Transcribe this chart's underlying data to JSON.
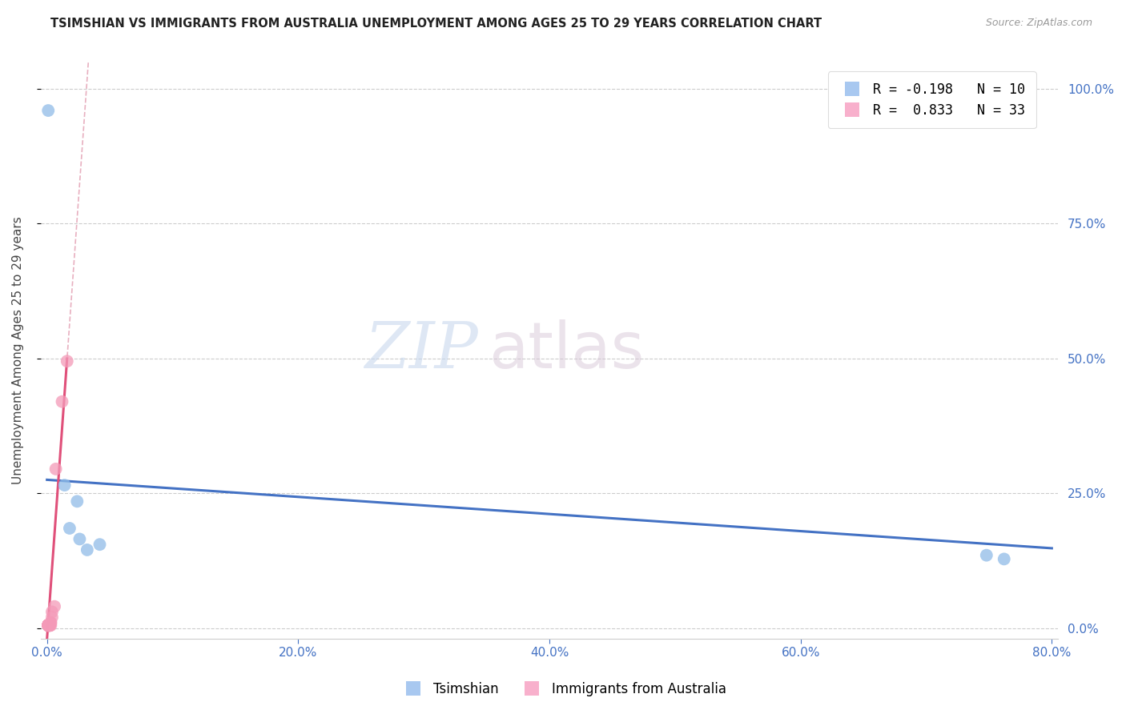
{
  "title": "TSIMSHIAN VS IMMIGRANTS FROM AUSTRALIA UNEMPLOYMENT AMONG AGES 25 TO 29 YEARS CORRELATION CHART",
  "source": "Source: ZipAtlas.com",
  "ylabel": "Unemployment Among Ages 25 to 29 years",
  "tsimshian_points": [
    [
      0.001,
      0.96
    ],
    [
      0.014,
      0.265
    ],
    [
      0.024,
      0.235
    ],
    [
      0.018,
      0.185
    ],
    [
      0.026,
      0.165
    ],
    [
      0.032,
      0.145
    ],
    [
      0.042,
      0.155
    ],
    [
      0.748,
      0.135
    ],
    [
      0.762,
      0.128
    ]
  ],
  "australia_points": [
    [
      0.001,
      0.005
    ],
    [
      0.001,
      0.005
    ],
    [
      0.001,
      0.005
    ],
    [
      0.001,
      0.005
    ],
    [
      0.001,
      0.005
    ],
    [
      0.001,
      0.005
    ],
    [
      0.001,
      0.005
    ],
    [
      0.001,
      0.005
    ],
    [
      0.001,
      0.005
    ],
    [
      0.001,
      0.005
    ],
    [
      0.001,
      0.005
    ],
    [
      0.001,
      0.005
    ],
    [
      0.001,
      0.005
    ],
    [
      0.001,
      0.005
    ],
    [
      0.001,
      0.005
    ],
    [
      0.001,
      0.005
    ],
    [
      0.002,
      0.005
    ],
    [
      0.002,
      0.005
    ],
    [
      0.002,
      0.005
    ],
    [
      0.002,
      0.005
    ],
    [
      0.002,
      0.005
    ],
    [
      0.002,
      0.005
    ],
    [
      0.002,
      0.005
    ],
    [
      0.002,
      0.005
    ],
    [
      0.003,
      0.005
    ],
    [
      0.003,
      0.01
    ],
    [
      0.003,
      0.01
    ],
    [
      0.004,
      0.02
    ],
    [
      0.004,
      0.03
    ],
    [
      0.006,
      0.04
    ],
    [
      0.007,
      0.295
    ],
    [
      0.012,
      0.42
    ],
    [
      0.016,
      0.495
    ]
  ],
  "tsimshian_color": "#90bce8",
  "australia_color": "#f49ab8",
  "tsimshian_line_color": "#4472c4",
  "australia_line_color": "#e0507a",
  "australia_dash_color": "#e8b0c0",
  "background_color": "#ffffff",
  "watermark_zip": "ZIP",
  "watermark_atlas": "atlas",
  "xlim": [
    -0.005,
    0.805
  ],
  "ylim": [
    -0.02,
    1.05
  ],
  "x_ticks": [
    0.0,
    0.2,
    0.4,
    0.6,
    0.8
  ],
  "y_ticks": [
    0.0,
    0.25,
    0.5,
    0.75,
    1.0
  ]
}
